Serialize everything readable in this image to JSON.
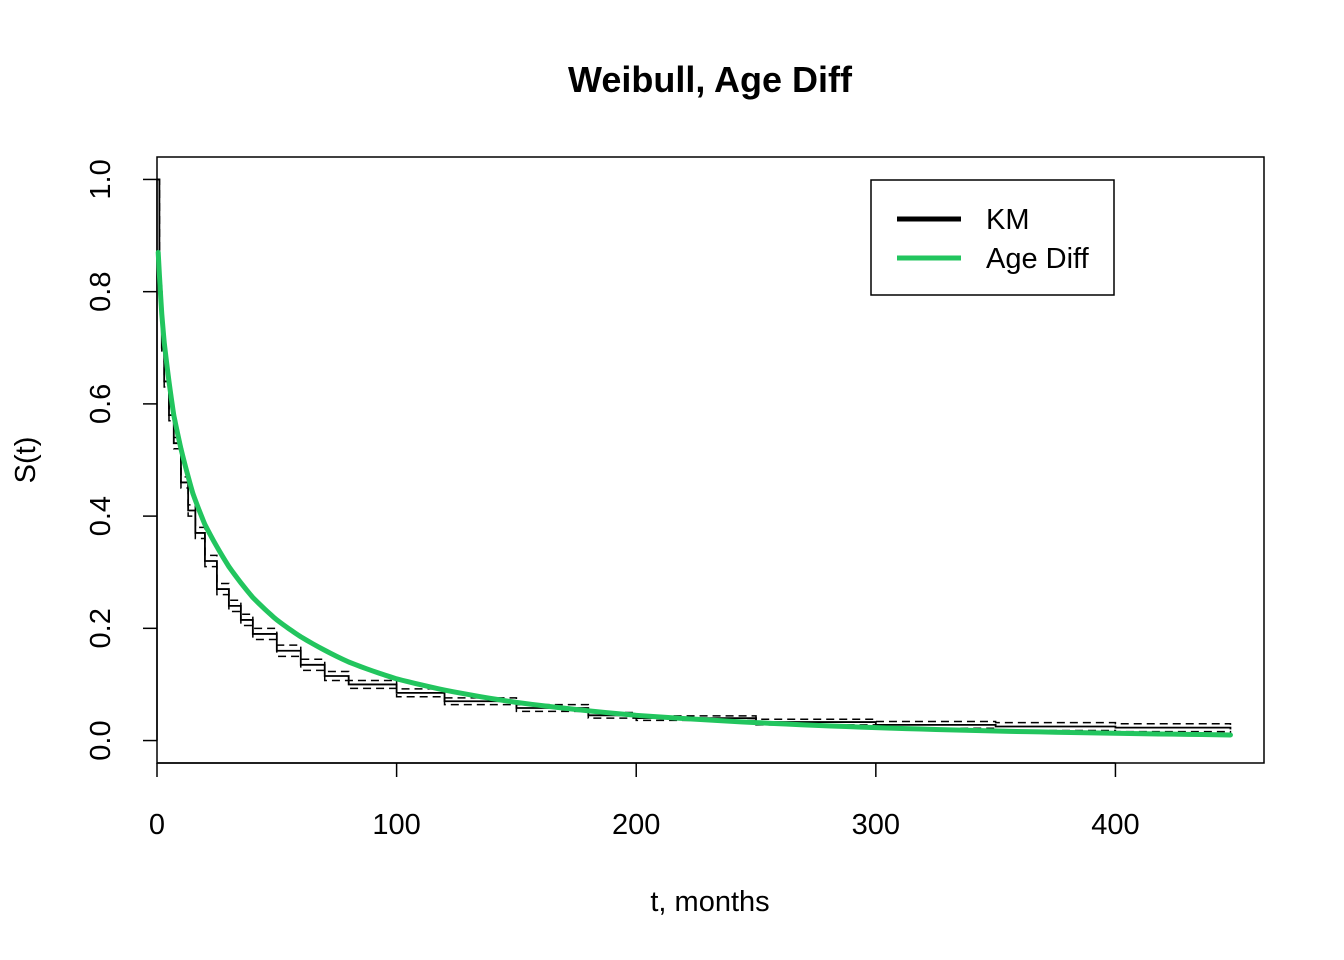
{
  "chart_data": {
    "type": "line",
    "title": "Weibull, Age Diff",
    "xlabel": "t, months",
    "ylabel": "S(t)",
    "xlim": [
      0,
      462
    ],
    "ylim": [
      -0.04,
      1.04
    ],
    "xticks": [
      0,
      100,
      200,
      300,
      400
    ],
    "yticks": [
      0.0,
      0.2,
      0.4,
      0.6,
      0.8,
      1.0
    ],
    "xtick_labels": [
      "0",
      "100",
      "200",
      "300",
      "400"
    ],
    "ytick_labels": [
      "0.0",
      "0.2",
      "0.4",
      "0.6",
      "0.8",
      "1.0"
    ],
    "grid": false,
    "legend_position": "top-right",
    "legend": [
      {
        "label": "KM",
        "color": "#000000"
      },
      {
        "label": "Age Diff",
        "color": "#22c55e"
      }
    ],
    "series": [
      {
        "name": "KM",
        "color": "#000000",
        "style": "step",
        "x": [
          0,
          1,
          2,
          3,
          5,
          7,
          10,
          13,
          16,
          20,
          25,
          30,
          35,
          40,
          50,
          60,
          70,
          80,
          100,
          120,
          150,
          180,
          200,
          250,
          300,
          350,
          400,
          448
        ],
        "y": [
          1.0,
          0.8,
          0.7,
          0.64,
          0.58,
          0.53,
          0.46,
          0.41,
          0.37,
          0.32,
          0.27,
          0.24,
          0.215,
          0.19,
          0.16,
          0.135,
          0.115,
          0.1,
          0.085,
          0.07,
          0.058,
          0.045,
          0.04,
          0.033,
          0.028,
          0.025,
          0.023,
          0.02
        ],
        "ci_lower": [
          1.0,
          0.79,
          0.69,
          0.63,
          0.57,
          0.52,
          0.45,
          0.4,
          0.36,
          0.31,
          0.26,
          0.23,
          0.205,
          0.18,
          0.15,
          0.125,
          0.107,
          0.093,
          0.078,
          0.064,
          0.052,
          0.04,
          0.036,
          0.028,
          0.022,
          0.018,
          0.016,
          0.012
        ],
        "ci_upper": [
          1.0,
          0.81,
          0.71,
          0.65,
          0.59,
          0.54,
          0.47,
          0.42,
          0.38,
          0.33,
          0.28,
          0.25,
          0.225,
          0.2,
          0.17,
          0.145,
          0.123,
          0.107,
          0.092,
          0.076,
          0.064,
          0.05,
          0.044,
          0.038,
          0.034,
          0.032,
          0.03,
          0.028
        ]
      },
      {
        "name": "Age Diff",
        "color": "#22c55e",
        "style": "weibull",
        "x": [
          0.5,
          1,
          2,
          3,
          5,
          7,
          10,
          15,
          20,
          30,
          40,
          50,
          60,
          80,
          100,
          120,
          150,
          200,
          250,
          300,
          350,
          400,
          448
        ],
        "y": [
          0.87,
          0.83,
          0.76,
          0.71,
          0.64,
          0.58,
          0.52,
          0.44,
          0.385,
          0.31,
          0.255,
          0.215,
          0.185,
          0.14,
          0.11,
          0.09,
          0.068,
          0.045,
          0.032,
          0.023,
          0.017,
          0.013,
          0.01
        ]
      }
    ]
  }
}
